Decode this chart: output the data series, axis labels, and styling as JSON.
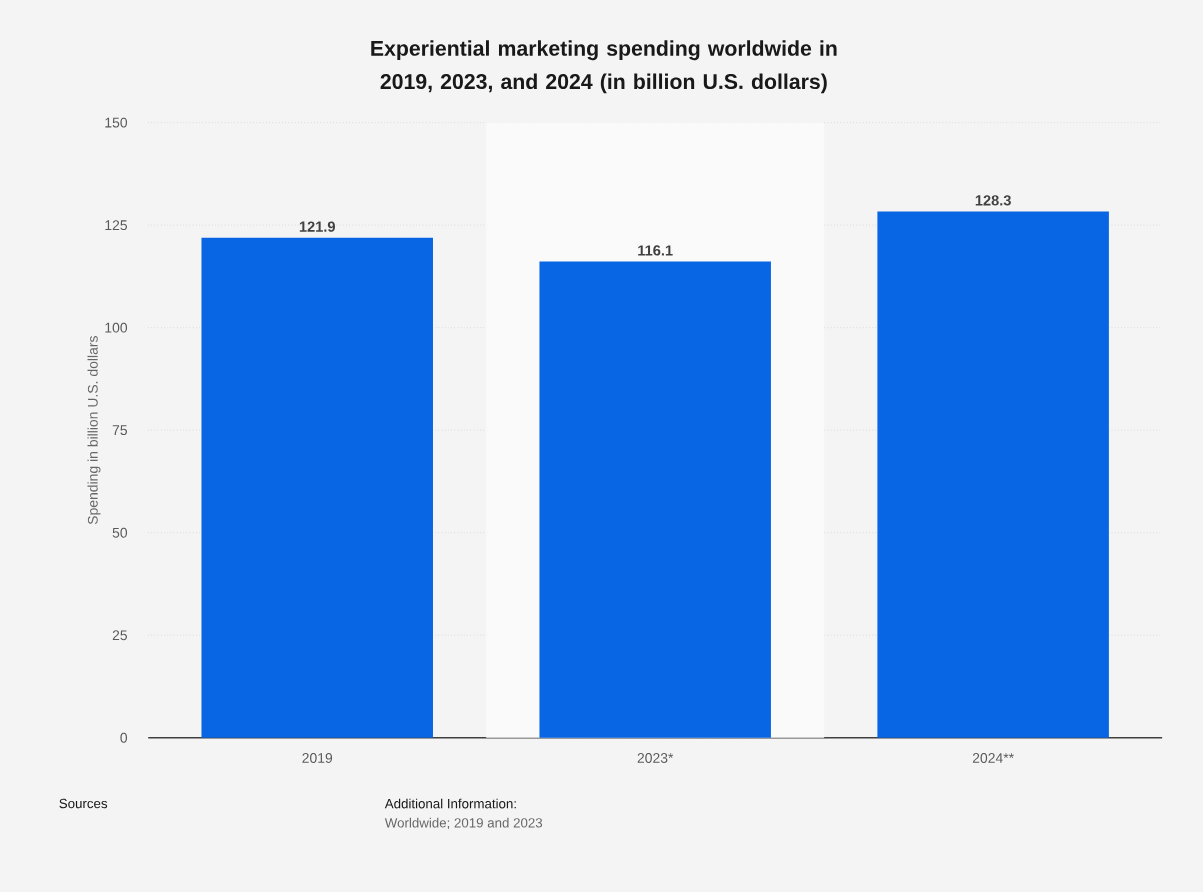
{
  "chart_data": {
    "type": "bar",
    "title": "Experiential marketing spending worldwide in 2019, 2023, and 2024 (in billion U.S. dollars)",
    "ylabel": "Spending in billion U.S. dollars",
    "categories": [
      "2019",
      "2023*",
      "2024**"
    ],
    "values": [
      121.9,
      116.1,
      128.3
    ],
    "color": "#0866e4",
    "ylim": [
      0,
      150
    ],
    "yticks": [
      0,
      25,
      50,
      75,
      100,
      125,
      150
    ],
    "grid": "y",
    "data_labels": true,
    "bands": [
      {
        "axis": "x",
        "from": "2023*",
        "to": "2023*",
        "color": "#fafafa"
      }
    ],
    "annotations": [
      "Sources",
      "Additional Information:",
      "Worldwide; 2019 and 2023"
    ]
  }
}
